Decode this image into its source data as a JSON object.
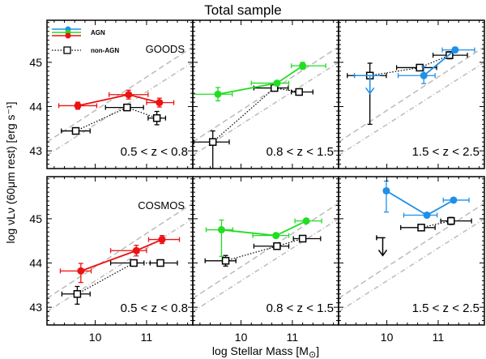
{
  "chart_data": {
    "type": "scatter",
    "title": "Total sample",
    "xlabel": "log Stellar Mass [M⊙]",
    "ylabel": "log νLν (60μm rest) [erg s⁻¹]",
    "xlim": [
      9.06,
      11.9
    ],
    "ylim": [
      42.6,
      45.95
    ],
    "xticks": [
      10,
      11
    ],
    "yticks": [
      43,
      44,
      45
    ],
    "grid": false,
    "legend": {
      "placement": "top-left",
      "entries": [
        {
          "label": "AGN",
          "colors": [
            "#1f8fe8",
            "#22dd22",
            "#ee1111"
          ]
        },
        {
          "label": "non-AGN",
          "style": "dotted-open-square"
        }
      ]
    },
    "reference_lines": [
      {
        "style": "dashed",
        "color": "#bbbbbb",
        "points": [
          [
            9.06,
            43.2
          ],
          [
            11.9,
            45.35
          ]
        ]
      },
      {
        "style": "dash-dot",
        "color": "#bbbbbb",
        "points": [
          [
            9.06,
            42.9
          ],
          [
            11.9,
            45.0
          ]
        ]
      }
    ],
    "panels": [
      {
        "survey": "GOODS",
        "zrange": "0.5 < z < 0.8",
        "agn_color": "#ee1111",
        "agn": [
          {
            "x": 9.66,
            "y": 44.02,
            "xerr": [
              0.37,
              0.37
            ],
            "yerr": [
              0.08,
              0.08
            ]
          },
          {
            "x": 10.65,
            "y": 44.27,
            "xerr": [
              0.38,
              0.38
            ],
            "yerr": [
              0.1,
              0.1
            ]
          },
          {
            "x": 11.25,
            "y": 44.09,
            "xerr": [
              0.25,
              0.28
            ],
            "yerr": [
              0.1,
              0.1
            ]
          }
        ],
        "nonagn": [
          {
            "x": 9.62,
            "y": 43.45,
            "xerr": [
              0.28,
              0.28
            ],
            "yerr": [
              0.06,
              0.06
            ]
          },
          {
            "x": 10.62,
            "y": 43.98,
            "xerr": [
              0.42,
              0.32
            ],
            "yerr": [
              0.04,
              0.04
            ]
          },
          {
            "x": 11.2,
            "y": 43.74,
            "xerr": [
              0.17,
              0.17
            ],
            "yerr": [
              0.15,
              0.15
            ]
          }
        ],
        "agn_upper_limit": null,
        "nonagn_upper_limit": null
      },
      {
        "survey": "",
        "zrange": "0.8 < z < 1.5",
        "agn_color": "#22dd22",
        "agn": [
          {
            "x": 9.55,
            "y": 44.28,
            "xerr": [
              0.5,
              0.28
            ],
            "yerr": [
              0.15,
              0.15
            ]
          },
          {
            "x": 10.7,
            "y": 44.53,
            "xerr": [
              0.5,
              0.23
            ],
            "yerr": [
              0.05,
              0.05
            ]
          },
          {
            "x": 11.2,
            "y": 44.92,
            "xerr": [
              0.22,
              0.45
            ],
            "yerr": [
              0.08,
              0.08
            ]
          }
        ],
        "nonagn": [
          {
            "x": 9.45,
            "y": 43.2,
            "xerr": [
              0.37,
              0.32
            ],
            "yerr": [
              0.6,
              0.25
            ]
          },
          {
            "x": 10.65,
            "y": 44.42,
            "xerr": [
              0.4,
              0.27
            ],
            "yerr": [
              0.04,
              0.04
            ]
          },
          {
            "x": 11.13,
            "y": 44.33,
            "xerr": [
              0.15,
              0.27
            ],
            "yerr": [
              0.04,
              0.04
            ]
          }
        ],
        "agn_upper_limit": null,
        "nonagn_upper_limit": null
      },
      {
        "survey": "",
        "zrange": "1.5 < z < 2.5",
        "agn_color": "#1f8fe8",
        "agn": [
          {
            "x": 10.72,
            "y": 44.7,
            "xerr": [
              0.5,
              0.22
            ],
            "yerr": [
              0.18,
              0.2
            ]
          },
          {
            "x": 11.33,
            "y": 45.28,
            "xerr": [
              0.25,
              0.38
            ],
            "yerr": [
              0.06,
              0.06
            ]
          }
        ],
        "nonagn": [
          {
            "x": 9.67,
            "y": 44.7,
            "xerr": [
              0.44,
              0.32
            ],
            "yerr": [
              1.1,
              0.28
            ]
          },
          {
            "x": 10.64,
            "y": 44.88,
            "xerr": [
              0.45,
              0.33
            ],
            "yerr": [
              0.06,
              0.06
            ]
          },
          {
            "x": 11.22,
            "y": 45.16,
            "xerr": [
              0.32,
              0.35
            ],
            "yerr": [
              0.08,
              0.08
            ]
          }
        ],
        "agn_upper_limit": {
          "x": 9.67,
          "y": 44.7,
          "xerr": [
            0.3,
            0.2
          ]
        },
        "nonagn_upper_limit": null
      },
      {
        "survey": "COSMOS",
        "zrange": "0.5 < z < 0.8",
        "agn_color": "#ee1111",
        "agn": [
          {
            "x": 9.72,
            "y": 43.82,
            "xerr": [
              0.4,
              0.2
            ],
            "yerr": [
              0.26,
              0.17
            ]
          },
          {
            "x": 10.8,
            "y": 44.28,
            "xerr": [
              0.5,
              0.2
            ],
            "yerr": [
              0.12,
              0.12
            ]
          },
          {
            "x": 11.3,
            "y": 44.53,
            "xerr": [
              0.26,
              0.34
            ],
            "yerr": [
              0.09,
              0.09
            ]
          }
        ],
        "nonagn": [
          {
            "x": 9.65,
            "y": 43.3,
            "xerr": [
              0.3,
              0.25
            ],
            "yerr": [
              0.23,
              0.17
            ]
          },
          {
            "x": 10.75,
            "y": 44.0,
            "xerr": [
              0.45,
              0.2
            ],
            "yerr": [
              0.03,
              0.03
            ]
          },
          {
            "x": 11.27,
            "y": 44.0,
            "xerr": [
              0.2,
              0.33
            ],
            "yerr": [
              0.03,
              0.03
            ]
          }
        ],
        "agn_upper_limit": null,
        "nonagn_upper_limit": null
      },
      {
        "survey": "",
        "zrange": "0.8 < z < 1.5",
        "agn_color": "#22dd22",
        "agn": [
          {
            "x": 9.62,
            "y": 44.75,
            "xerr": [
              0.3,
              0.22
            ],
            "yerr": [
              0.6,
              0.22
            ]
          },
          {
            "x": 10.68,
            "y": 44.62,
            "xerr": [
              0.45,
              0.25
            ],
            "yerr": [
              0.05,
              0.05
            ]
          },
          {
            "x": 11.27,
            "y": 44.95,
            "xerr": [
              0.22,
              0.3
            ],
            "yerr": [
              0.04,
              0.04
            ]
          }
        ],
        "nonagn": [
          {
            "x": 9.7,
            "y": 44.05,
            "xerr": [
              0.4,
              0.2
            ],
            "yerr": [
              0.12,
              0.12
            ]
          },
          {
            "x": 10.7,
            "y": 44.38,
            "xerr": [
              0.45,
              0.23
            ],
            "yerr": [
              0.04,
              0.04
            ]
          },
          {
            "x": 11.2,
            "y": 44.55,
            "xerr": [
              0.18,
              0.35
            ],
            "yerr": [
              0.04,
              0.04
            ]
          }
        ],
        "agn_upper_limit": null,
        "nonagn_upper_limit": null
      },
      {
        "survey": "",
        "zrange": "1.5 < z < 2.5",
        "agn_color": "#1f8fe8",
        "agn": [
          {
            "x": 9.99,
            "y": 45.63,
            "xerr": [
              0.05,
              0.05
            ],
            "yerr": [
              0.48,
              0.22
            ]
          },
          {
            "x": 10.78,
            "y": 45.08,
            "xerr": [
              0.45,
              0.2
            ],
            "yerr": [
              0.05,
              0.05
            ]
          },
          {
            "x": 11.3,
            "y": 45.42,
            "xerr": [
              0.2,
              0.3
            ],
            "yerr": [
              0.04,
              0.04
            ]
          }
        ],
        "nonagn": [
          {
            "x": 10.67,
            "y": 44.8,
            "xerr": [
              0.4,
              0.27
            ],
            "yerr": [
              0.04,
              0.04
            ]
          },
          {
            "x": 11.25,
            "y": 44.95,
            "xerr": [
              0.2,
              0.4
            ],
            "yerr": [
              0.08,
              0.08
            ]
          }
        ],
        "agn_upper_limit": null,
        "nonagn_upper_limit": {
          "x": 9.92,
          "y": 44.57,
          "xerr": [
            0.12,
            0.05
          ]
        }
      }
    ]
  },
  "labels": {
    "title": "Total sample",
    "xlabel_main": "log Stellar Mass [M",
    "xlabel_sun": "⊙",
    "xlabel_end": "]",
    "ylabel": "log νLν (60μm rest) [erg s⁻¹]",
    "legend_agn": "AGN",
    "legend_nonagn": "non-AGN"
  }
}
